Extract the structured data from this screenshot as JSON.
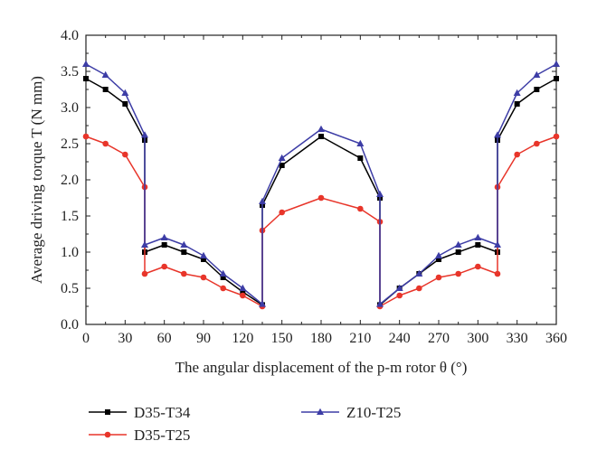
{
  "chart_data": {
    "type": "line",
    "title": "",
    "xlabel": "The angular displacement of the p-m rotor θ (°)",
    "ylabel": "Average driving torque T (N mm)",
    "xlim": [
      0,
      360
    ],
    "ylim": [
      0.0,
      4.0
    ],
    "xticks": [
      "0",
      "30",
      "60",
      "90",
      "120",
      "150",
      "180",
      "210",
      "240",
      "270",
      "300",
      "330",
      "360"
    ],
    "yticks": [
      "0.0",
      "0.5",
      "1.0",
      "1.5",
      "2.0",
      "2.5",
      "3.0",
      "3.5",
      "4.0"
    ],
    "grid": false,
    "legend_position": "bottom",
    "series": [
      {
        "name": "D35-T34",
        "color": "#000000",
        "marker": "square",
        "x": [
          0,
          15,
          30,
          45,
          45,
          45,
          60,
          75,
          90,
          105,
          120,
          135,
          135,
          150,
          180,
          210,
          225,
          225,
          240,
          255,
          270,
          285,
          300,
          315,
          315,
          330,
          345,
          360
        ],
        "y": [
          3.4,
          3.25,
          3.05,
          2.55,
          1.0,
          1.0,
          1.1,
          1.0,
          0.9,
          0.65,
          0.45,
          0.27,
          1.65,
          2.2,
          2.6,
          2.3,
          1.75,
          0.27,
          0.5,
          0.7,
          0.9,
          1.0,
          1.1,
          1.0,
          2.55,
          3.05,
          3.25,
          3.4
        ]
      },
      {
        "name": "D35-T25",
        "color": "#e8352a",
        "marker": "circle",
        "x": [
          0,
          15,
          30,
          45,
          45,
          60,
          75,
          90,
          105,
          120,
          135,
          135,
          150,
          180,
          210,
          225,
          225,
          240,
          255,
          270,
          285,
          300,
          315,
          315,
          330,
          345,
          360
        ],
        "y": [
          2.6,
          2.5,
          2.35,
          1.9,
          0.7,
          0.8,
          0.7,
          0.65,
          0.5,
          0.4,
          0.25,
          1.3,
          1.55,
          1.75,
          1.6,
          1.42,
          0.25,
          0.4,
          0.5,
          0.65,
          0.7,
          0.8,
          0.7,
          1.9,
          2.35,
          2.5,
          2.6
        ]
      },
      {
        "name": "Z10-T25",
        "color": "#3d3da6",
        "marker": "triangle",
        "x": [
          0,
          15,
          30,
          45,
          45,
          60,
          75,
          90,
          105,
          120,
          135,
          135,
          150,
          180,
          210,
          225,
          225,
          240,
          255,
          270,
          285,
          300,
          315,
          315,
          330,
          345,
          360
        ],
        "y": [
          3.6,
          3.45,
          3.2,
          2.62,
          1.1,
          1.2,
          1.1,
          0.95,
          0.7,
          0.5,
          0.28,
          1.7,
          2.3,
          2.7,
          2.5,
          1.8,
          0.28,
          0.5,
          0.7,
          0.95,
          1.1,
          1.2,
          1.1,
          2.62,
          3.2,
          3.45,
          3.6
        ]
      }
    ]
  }
}
